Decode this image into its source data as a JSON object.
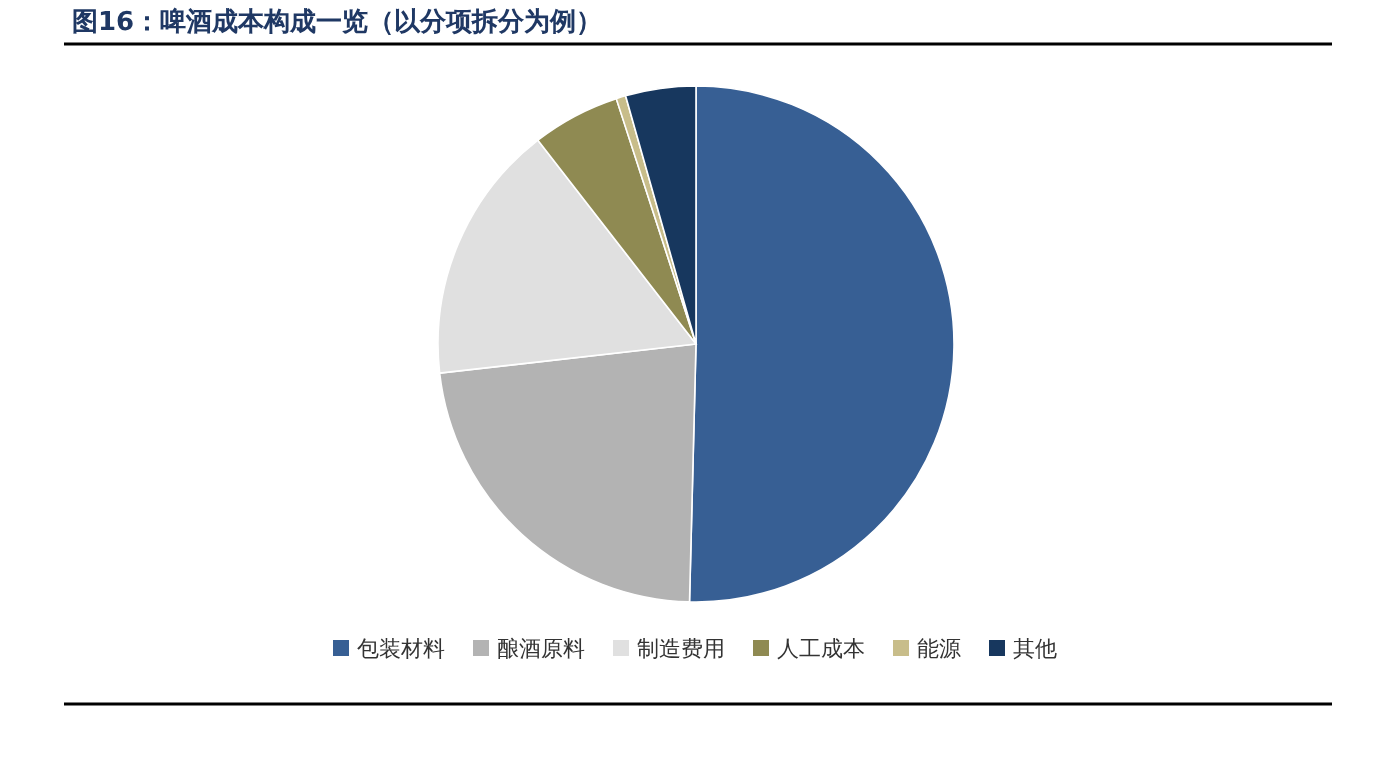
{
  "chart_data": {
    "type": "pie",
    "title": "图16：啤酒成本构成一览（以分项拆分为例）",
    "categories": [
      "包装材料",
      "酿酒原料",
      "制造费用",
      "人工成本",
      "能源",
      "其他"
    ],
    "values": [
      50.4,
      22.8,
      16.3,
      5.5,
      0.6,
      4.4
    ],
    "colors": [
      "#375f94",
      "#b3b3b3",
      "#e0e0e0",
      "#8f8a52",
      "#c8bd8a",
      "#17375e"
    ],
    "legend": "bottom"
  }
}
